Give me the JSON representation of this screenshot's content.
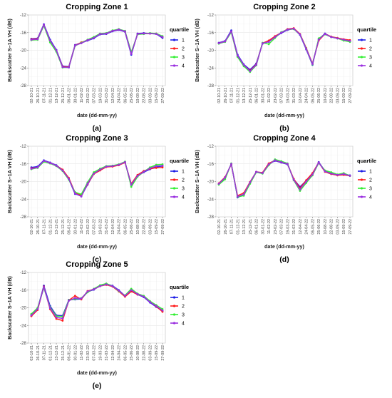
{
  "figure": {
    "ylabel": "Backscatter S–1A VH (dB)",
    "xlabel": "date (dd-mm-yy)",
    "legend_title": "quartile",
    "dates": [
      "02-10-21",
      "26-10-21",
      "07-11-21",
      "01-12-21",
      "13-12-21",
      "25-12-21",
      "06-01-22",
      "30-01-22",
      "11-02-22",
      "23-02-22",
      "07-03-22",
      "19-03-22",
      "31-03-22",
      "12-04-22",
      "24-04-22",
      "06-05-22",
      "25-06-22",
      "10-08-22",
      "22-08-22",
      "03-09-22",
      "15-09-22",
      "27-09-22"
    ],
    "yticks": [
      -12,
      -16,
      -20,
      -24,
      -28
    ],
    "colors": {
      "q1": "#1f1fe6",
      "q2": "#ff1a1a",
      "q3": "#33ee33",
      "q4": "#9b30e0"
    }
  },
  "chart_data": [
    {
      "type": "line",
      "panel": "(a)",
      "title": "Cropping Zone 1",
      "ylabel": "Backscatter S–1A VH (dB)",
      "xlabel": "date (dd-mm-yy)",
      "ylim": [
        -28,
        -12
      ],
      "categories": [
        "02-10-21",
        "26-10-21",
        "07-11-21",
        "01-12-21",
        "13-12-21",
        "25-12-21",
        "06-01-22",
        "30-01-22",
        "11-02-22",
        "23-02-22",
        "07-03-22",
        "19-03-22",
        "31-03-22",
        "12-04-22",
        "24-04-22",
        "06-05-22",
        "25-06-22",
        "10-08-22",
        "22-08-22",
        "03-09-22",
        "15-09-22",
        "27-09-22"
      ],
      "series": [
        {
          "name": "1",
          "values": [
            -17.4,
            -17.3,
            -14.1,
            -17.6,
            -19.9,
            -23.6,
            -23.7,
            -18.8,
            -18.3,
            -17.8,
            -17.3,
            -16.4,
            -16.3,
            -15.7,
            -15.4,
            -15.8,
            -21.0,
            -16.2,
            -16.1,
            -16.2,
            -16.3,
            -17.2
          ]
        },
        {
          "name": "2",
          "values": [
            -17.5,
            -17.4,
            -14.3,
            -17.9,
            -20.1,
            -23.7,
            -23.8,
            -18.9,
            -18.2,
            -17.7,
            -17.1,
            -16.3,
            -16.2,
            -15.6,
            -15.3,
            -15.7,
            -20.7,
            -16.3,
            -16.2,
            -16.2,
            -16.2,
            -17.0
          ]
        },
        {
          "name": "3",
          "values": [
            -17.7,
            -17.6,
            -14.4,
            -18.2,
            -20.3,
            -23.9,
            -23.9,
            -19.0,
            -18.3,
            -17.6,
            -17.0,
            -16.2,
            -16.1,
            -15.5,
            -15.2,
            -15.6,
            -20.4,
            -16.4,
            -16.3,
            -16.1,
            -16.2,
            -16.8
          ]
        },
        {
          "name": "4",
          "values": [
            -17.6,
            -17.5,
            -14.2,
            -17.8,
            -20.0,
            -23.8,
            -23.9,
            -18.9,
            -18.4,
            -17.7,
            -17.2,
            -16.3,
            -16.2,
            -15.6,
            -15.3,
            -15.7,
            -20.8,
            -16.3,
            -16.2,
            -16.2,
            -16.3,
            -17.0
          ]
        }
      ]
    },
    {
      "type": "line",
      "panel": "(b)",
      "title": "Cropping Zone 2",
      "ylabel": "Backscatter S–1A VH (dB)",
      "xlabel": "date (dd-mm-yy)",
      "ylim": [
        -28,
        -12
      ],
      "categories": [
        "02-10-21",
        "26-10-21",
        "07-11-21",
        "01-12-21",
        "13-12-21",
        "25-12-21",
        "06-01-22",
        "30-01-22",
        "11-02-22",
        "23-02-22",
        "07-03-22",
        "19-03-22",
        "31-03-22",
        "12-04-22",
        "24-04-22",
        "06-05-22",
        "25-06-22",
        "10-08-22",
        "22-08-22",
        "03-09-22",
        "15-09-22",
        "27-09-22"
      ],
      "series": [
        {
          "name": "1",
          "values": [
            -18.3,
            -17.9,
            -15.5,
            -21.0,
            -23.2,
            -24.4,
            -23.0,
            -18.5,
            -18.0,
            -17.0,
            -16.1,
            -15.4,
            -15.1,
            -16.5,
            -19.8,
            -23.3,
            -17.5,
            -16.2,
            -17.0,
            -17.3,
            -17.6,
            -17.9
          ]
        },
        {
          "name": "2",
          "values": [
            -18.4,
            -18.0,
            -15.8,
            -21.3,
            -23.4,
            -24.6,
            -23.2,
            -18.4,
            -17.8,
            -16.8,
            -16.0,
            -15.2,
            -15.0,
            -16.3,
            -19.5,
            -23.0,
            -17.8,
            -16.3,
            -16.9,
            -17.2,
            -17.5,
            -17.7
          ]
        },
        {
          "name": "3",
          "values": [
            -18.5,
            -18.1,
            -15.9,
            -21.5,
            -23.6,
            -24.9,
            -23.4,
            -18.3,
            -18.6,
            -17.2,
            -15.9,
            -15.3,
            -15.2,
            -16.4,
            -19.6,
            -23.2,
            -17.3,
            -16.4,
            -17.0,
            -17.3,
            -17.8,
            -18.1
          ]
        },
        {
          "name": "4",
          "values": [
            -18.4,
            -18.0,
            -15.7,
            -21.2,
            -23.3,
            -24.7,
            -23.3,
            -18.4,
            -18.1,
            -17.0,
            -16.0,
            -15.3,
            -15.1,
            -16.4,
            -19.7,
            -23.1,
            -17.6,
            -16.3,
            -17.0,
            -17.3,
            -17.6,
            -17.9
          ]
        }
      ]
    },
    {
      "type": "line",
      "panel": "(c)",
      "title": "Cropping Zone 3",
      "ylabel": "Backscatter S–1A VH (dB)",
      "xlabel": "date (dd-mm-yy)",
      "ylim": [
        -28,
        -12
      ],
      "categories": [
        "02-10-21",
        "26-10-21",
        "07-11-21",
        "01-12-21",
        "13-12-21",
        "25-12-21",
        "06-01-22",
        "30-01-22",
        "11-02-22",
        "23-02-22",
        "07-03-22",
        "19-03-22",
        "31-03-22",
        "12-04-22",
        "24-04-22",
        "06-05-22",
        "25-06-22",
        "10-08-22",
        "22-08-22",
        "03-09-22",
        "15-09-22",
        "27-09-22"
      ],
      "series": [
        {
          "name": "1",
          "values": [
            -16.8,
            -16.6,
            -15.2,
            -15.7,
            -16.3,
            -17.4,
            -19.5,
            -22.8,
            -23.3,
            -20.7,
            -18.2,
            -17.4,
            -16.6,
            -16.5,
            -16.2,
            -15.6,
            -20.8,
            -18.7,
            -17.9,
            -17.2,
            -16.7,
            -16.5
          ]
        },
        {
          "name": "2",
          "values": [
            -17.0,
            -16.8,
            -15.4,
            -15.8,
            -16.4,
            -17.3,
            -19.2,
            -22.5,
            -23.1,
            -20.6,
            -18.3,
            -17.5,
            -16.7,
            -16.6,
            -16.3,
            -15.7,
            -20.5,
            -18.5,
            -17.6,
            -17.1,
            -16.9,
            -16.8
          ]
        },
        {
          "name": "3",
          "values": [
            -17.2,
            -16.9,
            -15.5,
            -15.9,
            -16.5,
            -17.6,
            -19.6,
            -22.4,
            -22.9,
            -20.2,
            -17.9,
            -17.1,
            -16.5,
            -16.4,
            -16.1,
            -15.5,
            -21.2,
            -18.9,
            -17.8,
            -16.8,
            -16.2,
            -16.1
          ]
        },
        {
          "name": "4",
          "values": [
            -17.1,
            -16.8,
            -15.3,
            -15.8,
            -16.4,
            -17.5,
            -19.4,
            -22.7,
            -23.4,
            -20.5,
            -18.2,
            -17.3,
            -16.6,
            -16.5,
            -16.2,
            -15.6,
            -20.7,
            -18.7,
            -17.8,
            -17.0,
            -16.5,
            -16.4
          ]
        }
      ]
    },
    {
      "type": "line",
      "panel": "(d)",
      "title": "Cropping Zone 4",
      "ylabel": "Backscatter S–1A VH (dB)",
      "xlabel": "date (dd-mm-yy)",
      "ylim": [
        -28,
        -12
      ],
      "categories": [
        "02-10-21",
        "26-10-21",
        "07-11-21",
        "01-12-21",
        "13-12-21",
        "25-12-21",
        "06-01-22",
        "30-01-22",
        "11-02-22",
        "23-02-22",
        "07-03-22",
        "19-03-22",
        "31-03-22",
        "12-04-22",
        "24-04-22",
        "06-05-22",
        "25-06-22",
        "10-08-22",
        "22-08-22",
        "03-09-22",
        "15-09-22",
        "27-09-22"
      ],
      "series": [
        {
          "name": "1",
          "values": [
            -20.6,
            -19.2,
            -16.0,
            -23.6,
            -23.0,
            -20.3,
            -17.8,
            -18.1,
            -16.0,
            -15.3,
            -15.7,
            -16.1,
            -19.5,
            -21.2,
            -19.8,
            -18.3,
            -15.6,
            -17.6,
            -18.2,
            -18.5,
            -18.3,
            -18.6
          ]
        },
        {
          "name": "2",
          "values": [
            -20.4,
            -19.0,
            -16.1,
            -23.2,
            -22.6,
            -20.1,
            -17.8,
            -18.0,
            -15.9,
            -15.2,
            -15.6,
            -16.0,
            -19.4,
            -21.5,
            -19.7,
            -18.1,
            -15.7,
            -17.8,
            -18.3,
            -18.6,
            -18.5,
            -18.7
          ]
        },
        {
          "name": "3",
          "values": [
            -20.7,
            -19.5,
            -15.9,
            -23.5,
            -23.2,
            -20.5,
            -17.9,
            -18.2,
            -16.3,
            -15.0,
            -15.4,
            -15.9,
            -19.7,
            -22.1,
            -20.3,
            -18.6,
            -15.8,
            -17.5,
            -17.9,
            -18.4,
            -18.1,
            -18.7
          ]
        },
        {
          "name": "4",
          "values": [
            -20.5,
            -19.1,
            -16.0,
            -23.4,
            -22.9,
            -20.2,
            -17.8,
            -18.1,
            -16.1,
            -15.2,
            -15.6,
            -16.0,
            -19.6,
            -21.8,
            -20.0,
            -18.4,
            -15.7,
            -17.7,
            -18.2,
            -18.5,
            -18.3,
            -18.7
          ]
        }
      ]
    },
    {
      "type": "line",
      "panel": "(e)",
      "title": "Cropping Zone 5",
      "ylabel": "Backscatter S–1A VH (dB)",
      "xlabel": "date (dd-mm-yy)",
      "ylim": [
        -28,
        -12
      ],
      "categories": [
        "02-10-21",
        "26-10-21",
        "07-11-21",
        "01-12-21",
        "13-12-21",
        "25-12-21",
        "06-01-22",
        "30-01-22",
        "11-02-22",
        "23-02-22",
        "07-03-22",
        "19-03-22",
        "31-03-22",
        "12-04-22",
        "24-04-22",
        "06-05-22",
        "25-06-22",
        "10-08-22",
        "22-08-22",
        "03-09-22",
        "15-09-22",
        "27-09-22"
      ],
      "series": [
        {
          "name": "1",
          "values": [
            -21.6,
            -20.2,
            -15.0,
            -19.6,
            -21.7,
            -21.8,
            -18.2,
            -18.1,
            -18.0,
            -16.4,
            -15.9,
            -15.0,
            -14.6,
            -15.0,
            -16.0,
            -17.3,
            -16.0,
            -17.0,
            -17.6,
            -18.8,
            -19.8,
            -20.7
          ]
        },
        {
          "name": "2",
          "values": [
            -21.9,
            -20.5,
            -15.2,
            -20.3,
            -22.5,
            -22.9,
            -18.3,
            -17.3,
            -18.1,
            -16.2,
            -15.8,
            -15.1,
            -14.8,
            -15.2,
            -16.3,
            -17.5,
            -16.3,
            -17.0,
            -17.4,
            -18.6,
            -19.7,
            -20.9
          ]
        },
        {
          "name": "3",
          "values": [
            -21.4,
            -20.0,
            -15.5,
            -19.9,
            -21.9,
            -22.0,
            -18.3,
            -18.0,
            -17.8,
            -16.5,
            -15.7,
            -14.9,
            -14.5,
            -15.1,
            -16.2,
            -17.2,
            -15.7,
            -16.8,
            -17.3,
            -18.5,
            -19.4,
            -20.3
          ]
        },
        {
          "name": "4",
          "values": [
            -21.7,
            -20.3,
            -15.3,
            -20.1,
            -22.2,
            -22.4,
            -18.4,
            -17.8,
            -17.9,
            -16.3,
            -15.8,
            -15.1,
            -14.7,
            -15.1,
            -16.1,
            -17.3,
            -16.0,
            -16.9,
            -17.5,
            -18.7,
            -19.6,
            -20.6
          ]
        }
      ]
    }
  ]
}
